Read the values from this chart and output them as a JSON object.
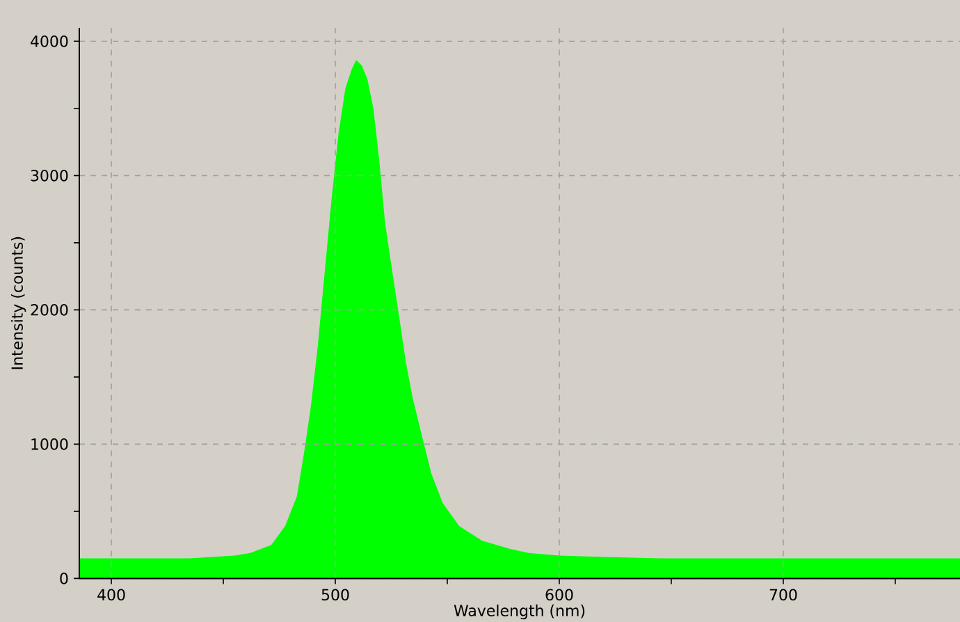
{
  "chart_data": {
    "type": "area",
    "xlabel": "Wavelength (nm)",
    "ylabel": "Intensity (counts)",
    "x": [
      385.7,
      400,
      420,
      435,
      445,
      455,
      462.1,
      471.4,
      477.6,
      482.8,
      485.9,
      489.0,
      492.1,
      495.2,
      498.3,
      501.4,
      504.5,
      507.3,
      509.3,
      511.8,
      514.3,
      517.0,
      519.7,
      522.2,
      525.3,
      528.4,
      531.5,
      534.6,
      538.7,
      542.9,
      548.0,
      555.3,
      565.6,
      578.1,
      586.3,
      600,
      620,
      645,
      670,
      700,
      730,
      760,
      778.9
    ],
    "values": [
      150,
      150,
      150,
      150,
      160,
      170,
      190,
      250,
      390,
      610,
      920,
      1270,
      1720,
      2270,
      2820,
      3310,
      3650,
      3790,
      3860,
      3820,
      3720,
      3500,
      3100,
      2650,
      2300,
      1960,
      1610,
      1340,
      1060,
      780,
      560,
      390,
      280,
      220,
      190,
      170,
      160,
      150,
      150,
      150,
      150,
      150,
      150
    ],
    "color": "#00ff00",
    "xlim": [
      385.7,
      778.9
    ],
    "ylim": [
      0,
      4100
    ],
    "xticks": [
      400,
      {
        "value": 450,
        "label": null
      },
      500,
      {
        "value": 550,
        "label": null
      },
      600,
      {
        "value": 650,
        "label": null
      },
      700,
      {
        "value": 750,
        "label": null
      }
    ],
    "yticks": [
      0,
      {
        "value": 500,
        "label": null
      },
      1000,
      {
        "value": 1500,
        "label": null
      },
      2000,
      {
        "value": 2500,
        "label": null
      },
      3000,
      {
        "value": 3500,
        "label": null
      },
      4000
    ],
    "grid": true
  }
}
